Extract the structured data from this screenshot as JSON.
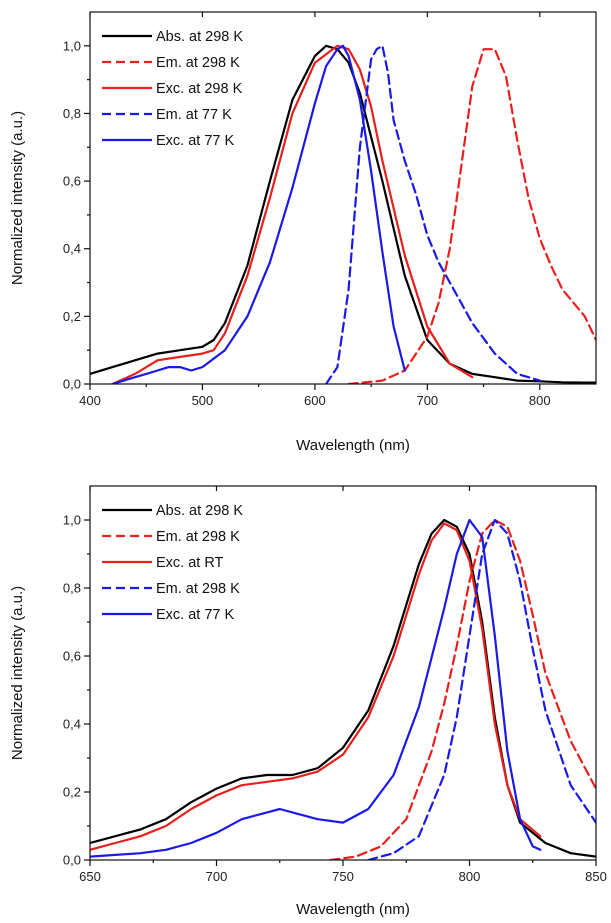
{
  "chart_data": [
    {
      "type": "line",
      "xlabel": "Wavelength (nm)",
      "ylabel": "Normalized intensity (a.u.)",
      "xlim": [
        400,
        850
      ],
      "ylim": [
        0,
        1.1
      ],
      "xticks": [
        "400",
        "500",
        "600",
        "700",
        "800"
      ],
      "xtick_values": [
        400,
        500,
        600,
        700,
        800
      ],
      "yticks": [
        "0,0",
        "0,2",
        "0,4",
        "0,6",
        "0,8",
        "1,0"
      ],
      "ytick_values": [
        0,
        0.2,
        0.4,
        0.6,
        0.8,
        1.0
      ],
      "legend_position": "top-left",
      "series": [
        {
          "name": "Abs. at 298 K",
          "color": "#000000",
          "dash": "solid",
          "x": [
            400,
            420,
            440,
            460,
            480,
            500,
            510,
            520,
            540,
            560,
            580,
            600,
            610,
            620,
            630,
            640,
            660,
            680,
            700,
            720,
            740,
            760,
            780,
            800,
            820,
            840,
            850
          ],
          "y": [
            0.03,
            0.05,
            0.07,
            0.09,
            0.1,
            0.11,
            0.13,
            0.18,
            0.35,
            0.6,
            0.84,
            0.97,
            1.0,
            0.99,
            0.95,
            0.86,
            0.6,
            0.32,
            0.13,
            0.06,
            0.03,
            0.02,
            0.01,
            0.008,
            0.005,
            0.004,
            0.004
          ]
        },
        {
          "name": "Em. at 298 K",
          "color": "#e8201c",
          "dash": "dashed",
          "x": [
            630,
            660,
            680,
            700,
            710,
            720,
            730,
            740,
            750,
            760,
            770,
            780,
            790,
            800,
            810,
            820,
            830,
            840,
            850
          ],
          "y": [
            0.0,
            0.01,
            0.04,
            0.14,
            0.24,
            0.4,
            0.64,
            0.88,
            0.99,
            0.99,
            0.91,
            0.72,
            0.55,
            0.43,
            0.35,
            0.28,
            0.24,
            0.2,
            0.13
          ]
        },
        {
          "name": "Exc. at 298 K",
          "color": "#e8201c",
          "dash": "solid",
          "x": [
            420,
            440,
            460,
            480,
            500,
            510,
            520,
            540,
            560,
            580,
            600,
            620,
            630,
            640,
            650,
            660,
            680,
            700,
            720,
            740
          ],
          "y": [
            0.0,
            0.03,
            0.07,
            0.08,
            0.09,
            0.1,
            0.15,
            0.32,
            0.55,
            0.8,
            0.95,
            1.0,
            0.99,
            0.93,
            0.82,
            0.66,
            0.38,
            0.17,
            0.06,
            0.02
          ]
        },
        {
          "name": "Em. at 77 K",
          "color": "#1a1ae8",
          "dash": "dashed",
          "x": [
            610,
            620,
            630,
            640,
            650,
            655,
            660,
            665,
            670,
            680,
            690,
            700,
            710,
            720,
            730,
            740,
            760,
            780,
            800
          ],
          "y": [
            0.0,
            0.05,
            0.28,
            0.7,
            0.96,
            0.99,
            1.0,
            0.92,
            0.78,
            0.66,
            0.56,
            0.44,
            0.36,
            0.3,
            0.24,
            0.18,
            0.09,
            0.03,
            0.01
          ]
        },
        {
          "name": "Exc. at 77 K",
          "color": "#1a1ae8",
          "dash": "solid",
          "x": [
            420,
            440,
            450,
            460,
            470,
            480,
            490,
            500,
            520,
            540,
            560,
            580,
            600,
            610,
            620,
            625,
            630,
            640,
            650,
            660,
            670,
            680
          ],
          "y": [
            0.0,
            0.02,
            0.03,
            0.04,
            0.05,
            0.05,
            0.04,
            0.05,
            0.1,
            0.2,
            0.36,
            0.58,
            0.83,
            0.94,
            0.99,
            1.0,
            0.97,
            0.84,
            0.63,
            0.39,
            0.17,
            0.04
          ]
        }
      ]
    },
    {
      "type": "line",
      "xlabel": "Wavelength (nm)",
      "ylabel": "Normalized intensity (a.u.)",
      "xlim": [
        650,
        850
      ],
      "ylim": [
        0,
        1.1
      ],
      "xticks": [
        "650",
        "700",
        "750",
        "800",
        "850"
      ],
      "xtick_values": [
        650,
        700,
        750,
        800,
        850
      ],
      "yticks": [
        "0,0",
        "0,2",
        "0,4",
        "0,6",
        "0,8",
        "1,0"
      ],
      "ytick_values": [
        0,
        0.2,
        0.4,
        0.6,
        0.8,
        1.0
      ],
      "legend_position": "top-left",
      "series": [
        {
          "name": "Abs. at 298 K",
          "color": "#000000",
          "dash": "solid",
          "x": [
            650,
            660,
            670,
            680,
            690,
            700,
            710,
            720,
            730,
            740,
            750,
            760,
            770,
            780,
            785,
            790,
            795,
            800,
            805,
            810,
            815,
            820,
            830,
            840,
            850
          ],
          "y": [
            0.05,
            0.07,
            0.09,
            0.12,
            0.17,
            0.21,
            0.24,
            0.25,
            0.25,
            0.27,
            0.33,
            0.44,
            0.63,
            0.87,
            0.96,
            1.0,
            0.98,
            0.9,
            0.7,
            0.42,
            0.22,
            0.11,
            0.05,
            0.02,
            0.01
          ]
        },
        {
          "name": "Em. at 298 K",
          "color": "#e8201c",
          "dash": "dashed",
          "x": [
            745,
            755,
            765,
            775,
            785,
            790,
            795,
            800,
            805,
            810,
            815,
            820,
            825,
            830,
            840,
            850
          ],
          "y": [
            0.0,
            0.01,
            0.04,
            0.12,
            0.32,
            0.46,
            0.63,
            0.82,
            0.96,
            1.0,
            0.98,
            0.88,
            0.72,
            0.55,
            0.35,
            0.21
          ]
        },
        {
          "name": "Exc. at RT",
          "color": "#e8201c",
          "dash": "solid",
          "x": [
            650,
            660,
            670,
            680,
            690,
            700,
            710,
            720,
            730,
            740,
            750,
            760,
            770,
            780,
            785,
            790,
            795,
            800,
            805,
            810,
            815,
            820,
            828
          ],
          "y": [
            0.03,
            0.05,
            0.07,
            0.1,
            0.15,
            0.19,
            0.22,
            0.23,
            0.24,
            0.26,
            0.31,
            0.42,
            0.6,
            0.84,
            0.94,
            0.99,
            0.97,
            0.88,
            0.68,
            0.4,
            0.22,
            0.12,
            0.07
          ]
        },
        {
          "name": "Em. at 298 K",
          "color": "#1a1ae8",
          "dash": "dashed",
          "x": [
            760,
            770,
            780,
            790,
            795,
            800,
            805,
            810,
            815,
            820,
            825,
            830,
            840,
            850
          ],
          "y": [
            0.0,
            0.02,
            0.07,
            0.25,
            0.42,
            0.66,
            0.9,
            1.0,
            0.96,
            0.82,
            0.62,
            0.44,
            0.22,
            0.11
          ]
        },
        {
          "name": "Exc. at 77 K",
          "color": "#1a1ae8",
          "dash": "solid",
          "x": [
            650,
            660,
            670,
            680,
            690,
            700,
            710,
            720,
            725,
            730,
            740,
            750,
            760,
            770,
            780,
            790,
            795,
            800,
            805,
            810,
            815,
            820,
            825,
            828
          ],
          "y": [
            0.01,
            0.015,
            0.02,
            0.03,
            0.05,
            0.08,
            0.12,
            0.14,
            0.15,
            0.14,
            0.12,
            0.11,
            0.15,
            0.25,
            0.45,
            0.74,
            0.9,
            1.0,
            0.95,
            0.66,
            0.32,
            0.12,
            0.04,
            0.03
          ]
        }
      ]
    }
  ]
}
